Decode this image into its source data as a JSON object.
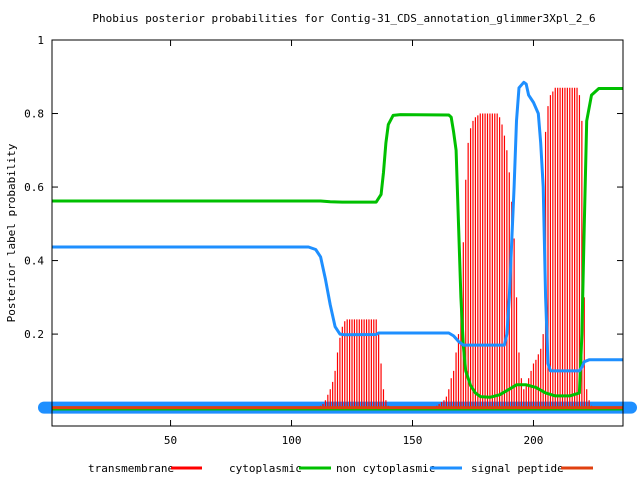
{
  "chart_data": {
    "type": "line",
    "title": "Phobius posterior probabilities for Contig-31_CDS_annotation_glimmer3Xpl_2_6",
    "ylabel": "Posterior label probability",
    "xlabel": "",
    "xlim": [
      1,
      237
    ],
    "ylim": [
      -0.05,
      1
    ],
    "x_ticks": [
      50,
      100,
      150,
      200
    ],
    "y_ticks": [
      0.2,
      0.4,
      0.6,
      0.8
    ],
    "y_tick_labels": [
      "0.2",
      "0.4",
      "0.6",
      "0.8"
    ],
    "y_top_label": "1",
    "legend_position": "bottom",
    "series": [
      {
        "name": "transmembrane",
        "style": "impulses",
        "color": "#ff0000",
        "points": [
          [
            111,
            0.002
          ],
          [
            112,
            0.005
          ],
          [
            113,
            0.01
          ],
          [
            114,
            0.02
          ],
          [
            115,
            0.035
          ],
          [
            116,
            0.05
          ],
          [
            117,
            0.07
          ],
          [
            118,
            0.1
          ],
          [
            119,
            0.15
          ],
          [
            120,
            0.19
          ],
          [
            121,
            0.22
          ],
          [
            122,
            0.235
          ],
          [
            123,
            0.24
          ],
          [
            124,
            0.24
          ],
          [
            125,
            0.24
          ],
          [
            126,
            0.24
          ],
          [
            127,
            0.24
          ],
          [
            128,
            0.24
          ],
          [
            129,
            0.24
          ],
          [
            130,
            0.24
          ],
          [
            131,
            0.24
          ],
          [
            132,
            0.24
          ],
          [
            133,
            0.24
          ],
          [
            134,
            0.24
          ],
          [
            135,
            0.24
          ],
          [
            136,
            0.2
          ],
          [
            137,
            0.12
          ],
          [
            138,
            0.05
          ],
          [
            139,
            0.02
          ],
          [
            140,
            0.005
          ],
          [
            160,
            0.005
          ],
          [
            161,
            0.01
          ],
          [
            162,
            0.015
          ],
          [
            163,
            0.02
          ],
          [
            164,
            0.03
          ],
          [
            165,
            0.05
          ],
          [
            166,
            0.08
          ],
          [
            167,
            0.1
          ],
          [
            168,
            0.15
          ],
          [
            169,
            0.2
          ],
          [
            170,
            0.3
          ],
          [
            171,
            0.45
          ],
          [
            172,
            0.62
          ],
          [
            173,
            0.72
          ],
          [
            174,
            0.76
          ],
          [
            175,
            0.78
          ],
          [
            176,
            0.79
          ],
          [
            177,
            0.795
          ],
          [
            178,
            0.8
          ],
          [
            179,
            0.8
          ],
          [
            180,
            0.8
          ],
          [
            181,
            0.8
          ],
          [
            182,
            0.8
          ],
          [
            183,
            0.8
          ],
          [
            184,
            0.8
          ],
          [
            185,
            0.8
          ],
          [
            186,
            0.79
          ],
          [
            187,
            0.77
          ],
          [
            188,
            0.74
          ],
          [
            189,
            0.7
          ],
          [
            190,
            0.64
          ],
          [
            191,
            0.56
          ],
          [
            192,
            0.46
          ],
          [
            193,
            0.3
          ],
          [
            194,
            0.15
          ],
          [
            195,
            0.08
          ],
          [
            196,
            0.05
          ],
          [
            197,
            0.06
          ],
          [
            198,
            0.08
          ],
          [
            199,
            0.1
          ],
          [
            200,
            0.12
          ],
          [
            201,
            0.13
          ],
          [
            202,
            0.145
          ],
          [
            203,
            0.16
          ],
          [
            204,
            0.2
          ],
          [
            205,
            0.75
          ],
          [
            206,
            0.82
          ],
          [
            207,
            0.85
          ],
          [
            208,
            0.86
          ],
          [
            209,
            0.87
          ],
          [
            210,
            0.87
          ],
          [
            211,
            0.87
          ],
          [
            212,
            0.87
          ],
          [
            213,
            0.87
          ],
          [
            214,
            0.87
          ],
          [
            215,
            0.87
          ],
          [
            216,
            0.87
          ],
          [
            217,
            0.87
          ],
          [
            218,
            0.87
          ],
          [
            219,
            0.85
          ],
          [
            220,
            0.78
          ],
          [
            221,
            0.3
          ],
          [
            222,
            0.05
          ],
          [
            223,
            0.02
          ],
          [
            224,
            0.005
          ]
        ]
      },
      {
        "name": "cytoplasmic",
        "style": "line",
        "color": "#00c000",
        "points": [
          [
            1,
            0.562
          ],
          [
            112,
            0.562
          ],
          [
            116,
            0.56
          ],
          [
            121,
            0.559
          ],
          [
            129,
            0.559
          ],
          [
            135,
            0.559
          ],
          [
            137,
            0.58
          ],
          [
            138,
            0.64
          ],
          [
            139,
            0.72
          ],
          [
            140,
            0.77
          ],
          [
            142,
            0.795
          ],
          [
            145,
            0.797
          ],
          [
            165,
            0.796
          ],
          [
            166,
            0.79
          ],
          [
            167,
            0.75
          ],
          [
            168,
            0.7
          ],
          [
            169,
            0.5
          ],
          [
            170,
            0.3
          ],
          [
            171,
            0.17
          ],
          [
            172,
            0.1
          ],
          [
            174,
            0.06
          ],
          [
            176,
            0.04
          ],
          [
            178,
            0.03
          ],
          [
            182,
            0.028
          ],
          [
            186,
            0.035
          ],
          [
            190,
            0.05
          ],
          [
            193,
            0.062
          ],
          [
            197,
            0.062
          ],
          [
            201,
            0.055
          ],
          [
            205,
            0.04
          ],
          [
            209,
            0.032
          ],
          [
            215,
            0.032
          ],
          [
            219,
            0.04
          ],
          [
            220,
            0.2
          ],
          [
            221,
            0.5
          ],
          [
            222,
            0.78
          ],
          [
            224,
            0.85
          ],
          [
            227,
            0.868
          ],
          [
            237,
            0.868
          ]
        ]
      },
      {
        "name": "non cytoplasmic",
        "style": "line",
        "color": "#1e8fff",
        "points": [
          [
            1,
            0.437
          ],
          [
            107,
            0.437
          ],
          [
            110,
            0.43
          ],
          [
            112,
            0.41
          ],
          [
            114,
            0.35
          ],
          [
            116,
            0.28
          ],
          [
            118,
            0.22
          ],
          [
            120,
            0.2
          ],
          [
            122,
            0.198
          ],
          [
            135,
            0.199
          ],
          [
            136,
            0.203
          ],
          [
            165,
            0.203
          ],
          [
            167,
            0.195
          ],
          [
            169,
            0.18
          ],
          [
            171,
            0.17
          ],
          [
            188,
            0.17
          ],
          [
            189,
            0.2
          ],
          [
            190,
            0.3
          ],
          [
            191,
            0.45
          ],
          [
            192,
            0.6
          ],
          [
            193,
            0.78
          ],
          [
            194,
            0.87
          ],
          [
            196,
            0.885
          ],
          [
            197,
            0.88
          ],
          [
            198,
            0.85
          ],
          [
            200,
            0.83
          ],
          [
            202,
            0.8
          ],
          [
            203,
            0.72
          ],
          [
            204,
            0.6
          ],
          [
            205,
            0.3
          ],
          [
            206,
            0.12
          ],
          [
            207,
            0.1
          ],
          [
            219,
            0.1
          ],
          [
            220,
            0.11
          ],
          [
            221,
            0.125
          ],
          [
            223,
            0.13
          ],
          [
            237,
            0.13
          ]
        ]
      },
      {
        "name": "signal peptide",
        "style": "line",
        "color": "#e04010",
        "points": [
          [
            1,
            0
          ],
          [
            237,
            0
          ]
        ]
      }
    ]
  }
}
